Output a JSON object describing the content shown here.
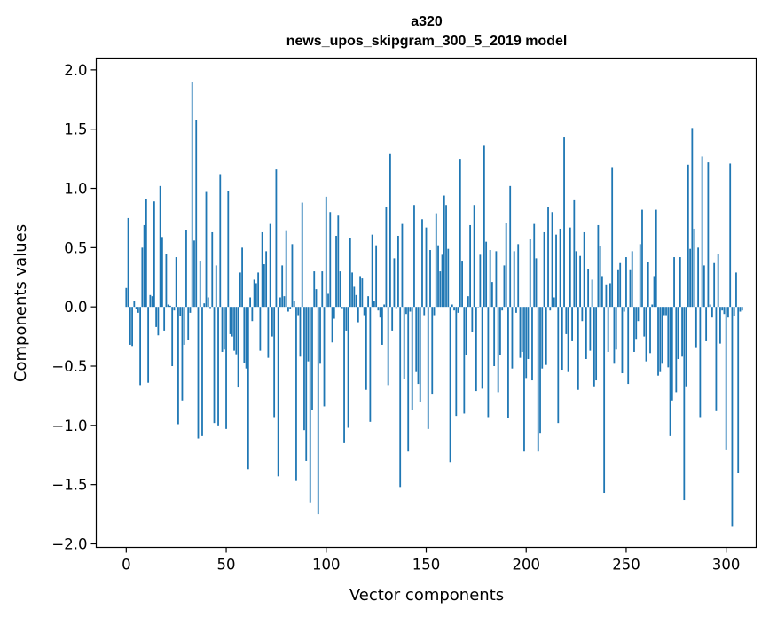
{
  "chart_data": {
    "type": "bar",
    "title": "a320",
    "subtitle": "news_upos_skipgram_300_5_2019 model",
    "xlabel": "Vector components",
    "ylabel": "Components values",
    "xlim": [
      -15,
      315
    ],
    "ylim": [
      -2.03,
      2.1
    ],
    "x_ticks": [
      0,
      50,
      100,
      150,
      200,
      250,
      300
    ],
    "x_tick_labels": [
      "0",
      "50",
      "100",
      "150",
      "200",
      "250",
      "300"
    ],
    "y_ticks": [
      2.0,
      1.5,
      1.0,
      0.5,
      0.0,
      -0.5,
      -1.0,
      -1.5,
      -2.0
    ],
    "y_tick_labels": [
      "2.0",
      "1.5",
      "1.0",
      "0.5",
      "0.0",
      "−0.5",
      "−1.0",
      "−1.5",
      "−2.0"
    ],
    "grid": false,
    "bar_color": "#1f77b4",
    "values": [
      0.16,
      0.75,
      -0.32,
      -0.33,
      0.05,
      -0.02,
      -0.05,
      -0.66,
      0.5,
      0.69,
      0.91,
      -0.64,
      0.1,
      0.09,
      0.89,
      -0.17,
      -0.24,
      1.02,
      0.59,
      -0.2,
      0.45,
      0.02,
      0.01,
      -0.5,
      -0.03,
      0.42,
      -0.99,
      -0.08,
      -0.79,
      -0.32,
      0.65,
      -0.28,
      -0.05,
      1.9,
      0.56,
      1.58,
      -1.11,
      0.39,
      -1.09,
      0.03,
      0.97,
      0.08,
      -0.01,
      0.63,
      -0.98,
      0.35,
      -1.0,
      1.12,
      -0.38,
      -0.36,
      -1.03,
      0.98,
      -0.23,
      -0.25,
      -0.37,
      -0.4,
      -0.68,
      0.29,
      0.5,
      -0.47,
      -0.52,
      -1.37,
      0.08,
      -0.12,
      0.23,
      0.2,
      0.29,
      -0.37,
      0.63,
      0.36,
      0.47,
      -0.43,
      0.7,
      -0.25,
      -0.93,
      1.16,
      -1.43,
      0.08,
      0.35,
      0.09,
      0.64,
      -0.04,
      -0.02,
      0.53,
      0.05,
      -1.47,
      -0.07,
      -0.42,
      0.88,
      -1.04,
      -1.3,
      -0.46,
      -1.65,
      -0.87,
      0.3,
      0.15,
      -1.75,
      -0.48,
      0.3,
      -0.84,
      0.93,
      0.11,
      0.8,
      -0.3,
      -0.1,
      0.6,
      0.77,
      0.3,
      -0.01,
      -1.15,
      -0.2,
      -1.02,
      0.58,
      0.29,
      0.17,
      0.1,
      -0.13,
      0.26,
      0.24,
      -0.07,
      -0.7,
      0.09,
      -0.97,
      0.61,
      0.05,
      0.52,
      -0.03,
      -0.09,
      -0.32,
      0.02,
      0.84,
      -0.66,
      1.29,
      -0.2,
      0.41,
      -0.01,
      0.6,
      -1.52,
      0.7,
      -0.61,
      -0.06,
      -1.22,
      -0.04,
      -0.87,
      0.86,
      -0.55,
      -0.65,
      -0.8,
      0.74,
      -0.07,
      0.67,
      -1.03,
      0.48,
      -0.74,
      -0.07,
      0.79,
      0.52,
      0.3,
      0.44,
      0.94,
      0.86,
      0.49,
      -1.31,
      0.02,
      -0.03,
      -0.92,
      -0.05,
      1.25,
      0.39,
      -0.9,
      -0.41,
      0.09,
      0.69,
      -0.21,
      0.86,
      -0.71,
      0.0,
      0.44,
      -0.69,
      1.36,
      0.55,
      -0.93,
      0.48,
      0.21,
      -0.5,
      0.47,
      -0.72,
      -0.41,
      -0.03,
      0.35,
      0.71,
      -0.94,
      1.02,
      -0.52,
      0.47,
      -0.05,
      0.53,
      -0.43,
      -0.38,
      -1.22,
      -0.6,
      -0.44,
      0.57,
      -0.62,
      0.7,
      0.41,
      -1.22,
      -1.07,
      -0.52,
      0.63,
      -0.49,
      0.84,
      -0.03,
      0.8,
      0.08,
      0.61,
      -0.98,
      0.66,
      -0.53,
      1.43,
      -0.23,
      -0.55,
      0.67,
      -0.29,
      0.9,
      0.47,
      -0.7,
      0.43,
      -0.12,
      0.63,
      -0.44,
      0.32,
      -0.37,
      0.23,
      -0.67,
      -0.62,
      0.69,
      0.51,
      0.26,
      -1.57,
      0.19,
      -0.38,
      0.2,
      1.18,
      -0.48,
      -0.36,
      0.31,
      0.37,
      -0.56,
      -0.04,
      0.42,
      -0.65,
      0.31,
      0.47,
      -0.38,
      -0.27,
      -0.12,
      0.53,
      0.82,
      -0.25,
      -0.46,
      0.38,
      -0.39,
      0.02,
      0.26,
      0.82,
      -0.58,
      -0.55,
      -0.48,
      -0.07,
      -0.07,
      -0.51,
      -1.09,
      -0.79,
      0.42,
      -0.72,
      -0.44,
      0.42,
      -0.42,
      -1.63,
      -0.67,
      1.2,
      0.49,
      1.51,
      0.66,
      -0.34,
      0.5,
      -0.93,
      1.27,
      0.35,
      -0.29,
      1.22,
      0.02,
      -0.09,
      0.37,
      -0.88,
      0.45,
      -0.31,
      -0.03,
      -0.06,
      -1.21,
      -0.09,
      1.21,
      -1.85,
      -0.08,
      0.29,
      -1.4,
      -0.04,
      -0.03
    ]
  }
}
